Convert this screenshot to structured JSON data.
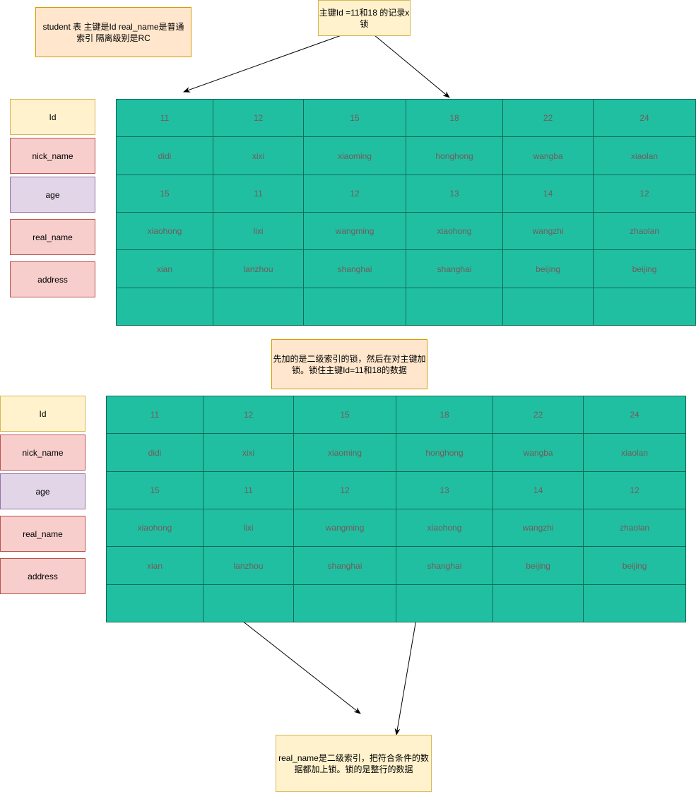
{
  "notes": {
    "table_info": "student 表 主键是Id real_name是普通索引 隔离级别是RC",
    "pk_lock": "主键Id =11和18 的记录x锁",
    "order": "先加的是二级索引的锁，然后在对主键加锁。锁住主键Id=11和18的数据",
    "secondary": "real_name是二级索引，把符合条件的数据都加上锁。锁的是整行的数据"
  },
  "fields": [
    "Id",
    "nick_name",
    "age",
    "real_name",
    "address"
  ],
  "colors": {
    "cell_fill": "#21bfa2",
    "cell_border": "#0e6b58"
  },
  "table": {
    "rows": [
      [
        "11",
        "12",
        "15",
        "18",
        "22",
        "24"
      ],
      [
        "didi",
        "xixi",
        "xiaoming",
        "honghong",
        "wangba",
        "xiaolan"
      ],
      [
        "15",
        "11",
        "12",
        "13",
        "14",
        "12"
      ],
      [
        "xiaohong",
        "lixi",
        "wangming",
        "xiaohong",
        "wangzhi",
        "zhaolan"
      ],
      [
        "xian",
        "lanzhou",
        "shanghai",
        "shanghai",
        "beijing",
        "beijing"
      ],
      [
        "",
        "",
        "",
        "",
        "",
        ""
      ]
    ]
  }
}
